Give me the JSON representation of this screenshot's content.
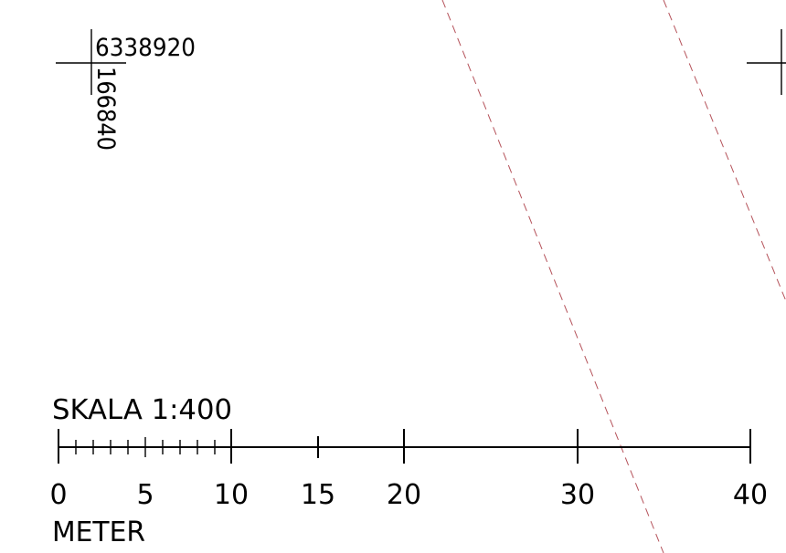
{
  "colors": {
    "line": "#000000",
    "boundary": "#b5525a",
    "background": "#ffffff"
  },
  "grid_marker": {
    "northing": "6338920",
    "easting": "166840"
  },
  "scale_bar": {
    "title": "SKALA 1:400",
    "unit": "METER",
    "labels": [
      "0",
      "5",
      "10",
      "15",
      "20",
      "30",
      "40"
    ]
  }
}
